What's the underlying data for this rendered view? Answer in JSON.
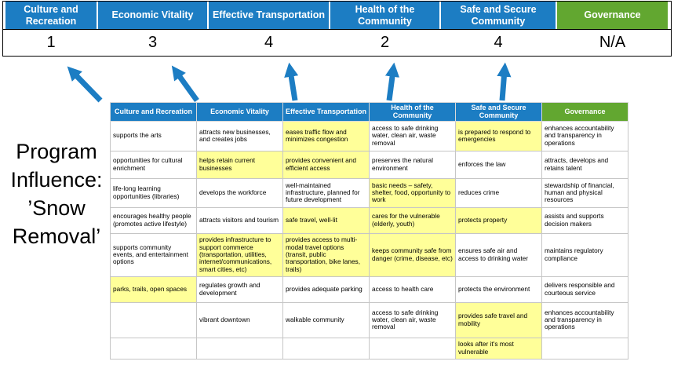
{
  "colors": {
    "header_blue": "#1C7DC3",
    "header_green": "#62A730",
    "highlight_yellow": "#FFFF99",
    "arrow_blue": "#1C7DC3"
  },
  "top_band": {
    "columns": [
      {
        "label": "Culture and Recreation",
        "score": "1",
        "color": "blue"
      },
      {
        "label": "Economic Vitality",
        "score": "3",
        "color": "blue"
      },
      {
        "label": "Effective Transportation",
        "score": "4",
        "color": "blue"
      },
      {
        "label": "Health of the Community",
        "score": "2",
        "color": "blue"
      },
      {
        "label": "Safe and Secure Community",
        "score": "4",
        "color": "blue"
      },
      {
        "label": "Governance",
        "score": "N/A",
        "color": "green"
      }
    ]
  },
  "program_label": {
    "lines": [
      "Program",
      "Influence:",
      "’Snow",
      "Removal’"
    ]
  },
  "matrix": {
    "headers": [
      "Culture and Recreation",
      "Economic Vitality",
      "Effective Transportation",
      "Health of the Community",
      "Safe and Secure Community",
      "Governance"
    ],
    "rows": [
      [
        {
          "t": "supports the arts",
          "hl": false
        },
        {
          "t": "attracts new businesses, and creates jobs",
          "hl": false
        },
        {
          "t": "eases traffic flow and minimizes congestion",
          "hl": true
        },
        {
          "t": "access to safe drinking water, clean air, waste removal",
          "hl": false
        },
        {
          "t": "is prepared to respond to emergencies",
          "hl": true
        },
        {
          "t": "enhances accountability and transparency in operations",
          "hl": false
        }
      ],
      [
        {
          "t": "opportunities for cultural enrichment",
          "hl": false
        },
        {
          "t": "helps retain current businesses",
          "hl": true
        },
        {
          "t": "provides convenient and efficient access",
          "hl": true
        },
        {
          "t": "preserves the natural environment",
          "hl": false
        },
        {
          "t": "enforces the law",
          "hl": false
        },
        {
          "t": "attracts, develops and retains talent",
          "hl": false
        }
      ],
      [
        {
          "t": "life-long learning opportunities (libraries)",
          "hl": false
        },
        {
          "t": "develops the workforce",
          "hl": false
        },
        {
          "t": "well-maintained infrastructure, planned for future development",
          "hl": false
        },
        {
          "t": "basic needs – safety, shelter, food, opportunity to work",
          "hl": true
        },
        {
          "t": "reduces crime",
          "hl": false
        },
        {
          "t": "stewardship of financial, human and physical resources",
          "hl": false
        }
      ],
      [
        {
          "t": "encourages healthy people (promotes active lifestyle)",
          "hl": false
        },
        {
          "t": "attracts visitors and tourism",
          "hl": false
        },
        {
          "t": "safe travel, well-lit",
          "hl": true
        },
        {
          "t": "cares for the vulnerable (elderly, youth)",
          "hl": true
        },
        {
          "t": "protects property",
          "hl": true
        },
        {
          "t": "assists and supports decision makers",
          "hl": false
        }
      ],
      [
        {
          "t": "supports community events, and entertainment options",
          "hl": false
        },
        {
          "t": "provides infrastructure to support commerce (transportation, utilities, internet/communications, smart cities, etc)",
          "hl": true
        },
        {
          "t": "provides access to multi-modal travel options (transit, public transportation, bike lanes, trails)",
          "hl": true
        },
        {
          "t": "keeps community safe from danger (crime, disease, etc)",
          "hl": true
        },
        {
          "t": "ensures safe air and access to drinking water",
          "hl": false
        },
        {
          "t": "maintains regulatory compliance",
          "hl": false
        }
      ],
      [
        {
          "t": "parks, trails, open spaces",
          "hl": true
        },
        {
          "t": "regulates growth and development",
          "hl": false
        },
        {
          "t": "provides adequate parking",
          "hl": false
        },
        {
          "t": "access to health care",
          "hl": false
        },
        {
          "t": "protects the environment",
          "hl": false
        },
        {
          "t": "delivers responsible and courteous service",
          "hl": false
        }
      ],
      [
        {
          "t": "",
          "hl": false
        },
        {
          "t": "vibrant downtown",
          "hl": false
        },
        {
          "t": "walkable community",
          "hl": false
        },
        {
          "t": "access to safe drinking water, clean air, waste removal",
          "hl": false
        },
        {
          "t": "provides safe travel and mobility",
          "hl": true
        },
        {
          "t": "enhances accountability and transparency in operations",
          "hl": false
        }
      ],
      [
        {
          "t": "",
          "hl": false
        },
        {
          "t": "",
          "hl": false
        },
        {
          "t": "",
          "hl": false
        },
        {
          "t": "",
          "hl": false
        },
        {
          "t": "looks after it's most vulnerable",
          "hl": true
        },
        {
          "t": "",
          "hl": false
        }
      ]
    ]
  }
}
